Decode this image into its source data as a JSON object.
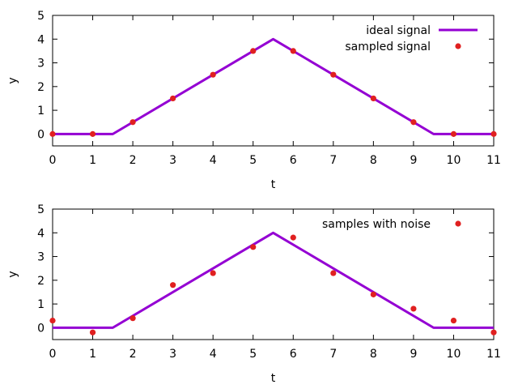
{
  "chart_data": [
    {
      "type": "line",
      "xlabel": "t",
      "ylabel": "y",
      "xlim": [
        0,
        11
      ],
      "ylim": [
        -0.5,
        5
      ],
      "xticks": [
        0,
        1,
        2,
        3,
        4,
        5,
        6,
        7,
        8,
        9,
        10,
        11
      ],
      "yticks": [
        0,
        1,
        2,
        3,
        4,
        5
      ],
      "grid": false,
      "legend": "top-right",
      "series": [
        {
          "name": "ideal signal",
          "style": "line",
          "color": "#9400d3",
          "x": [
            0,
            1.5,
            5.5,
            9.5,
            11
          ],
          "y": [
            0,
            0,
            4,
            0,
            0
          ]
        },
        {
          "name": "sampled signal",
          "style": "points",
          "color": "#e02020",
          "x": [
            0,
            1,
            2,
            3,
            4,
            5,
            6,
            7,
            8,
            9,
            10,
            11
          ],
          "y": [
            0,
            0,
            0.5,
            1.5,
            2.5,
            3.5,
            3.5,
            2.5,
            1.5,
            0.5,
            0,
            0
          ]
        }
      ]
    },
    {
      "type": "line",
      "xlabel": "t",
      "ylabel": "y",
      "xlim": [
        0,
        11
      ],
      "ylim": [
        -0.5,
        5
      ],
      "xticks": [
        0,
        1,
        2,
        3,
        4,
        5,
        6,
        7,
        8,
        9,
        10,
        11
      ],
      "yticks": [
        0,
        1,
        2,
        3,
        4,
        5
      ],
      "grid": false,
      "legend": "top-right",
      "series": [
        {
          "style": "line",
          "color": "#9400d3",
          "x": [
            0,
            1.5,
            5.5,
            9.5,
            11
          ],
          "y": [
            0,
            0,
            4,
            0,
            0
          ]
        },
        {
          "name": "samples with noise",
          "style": "points",
          "color": "#e02020",
          "x": [
            0,
            1,
            2,
            3,
            4,
            5,
            6,
            7,
            8,
            9,
            10,
            11
          ],
          "y": [
            0.3,
            -0.2,
            0.4,
            1.8,
            2.3,
            3.4,
            3.8,
            2.3,
            1.4,
            0.8,
            0.3,
            -0.2
          ]
        }
      ]
    }
  ]
}
